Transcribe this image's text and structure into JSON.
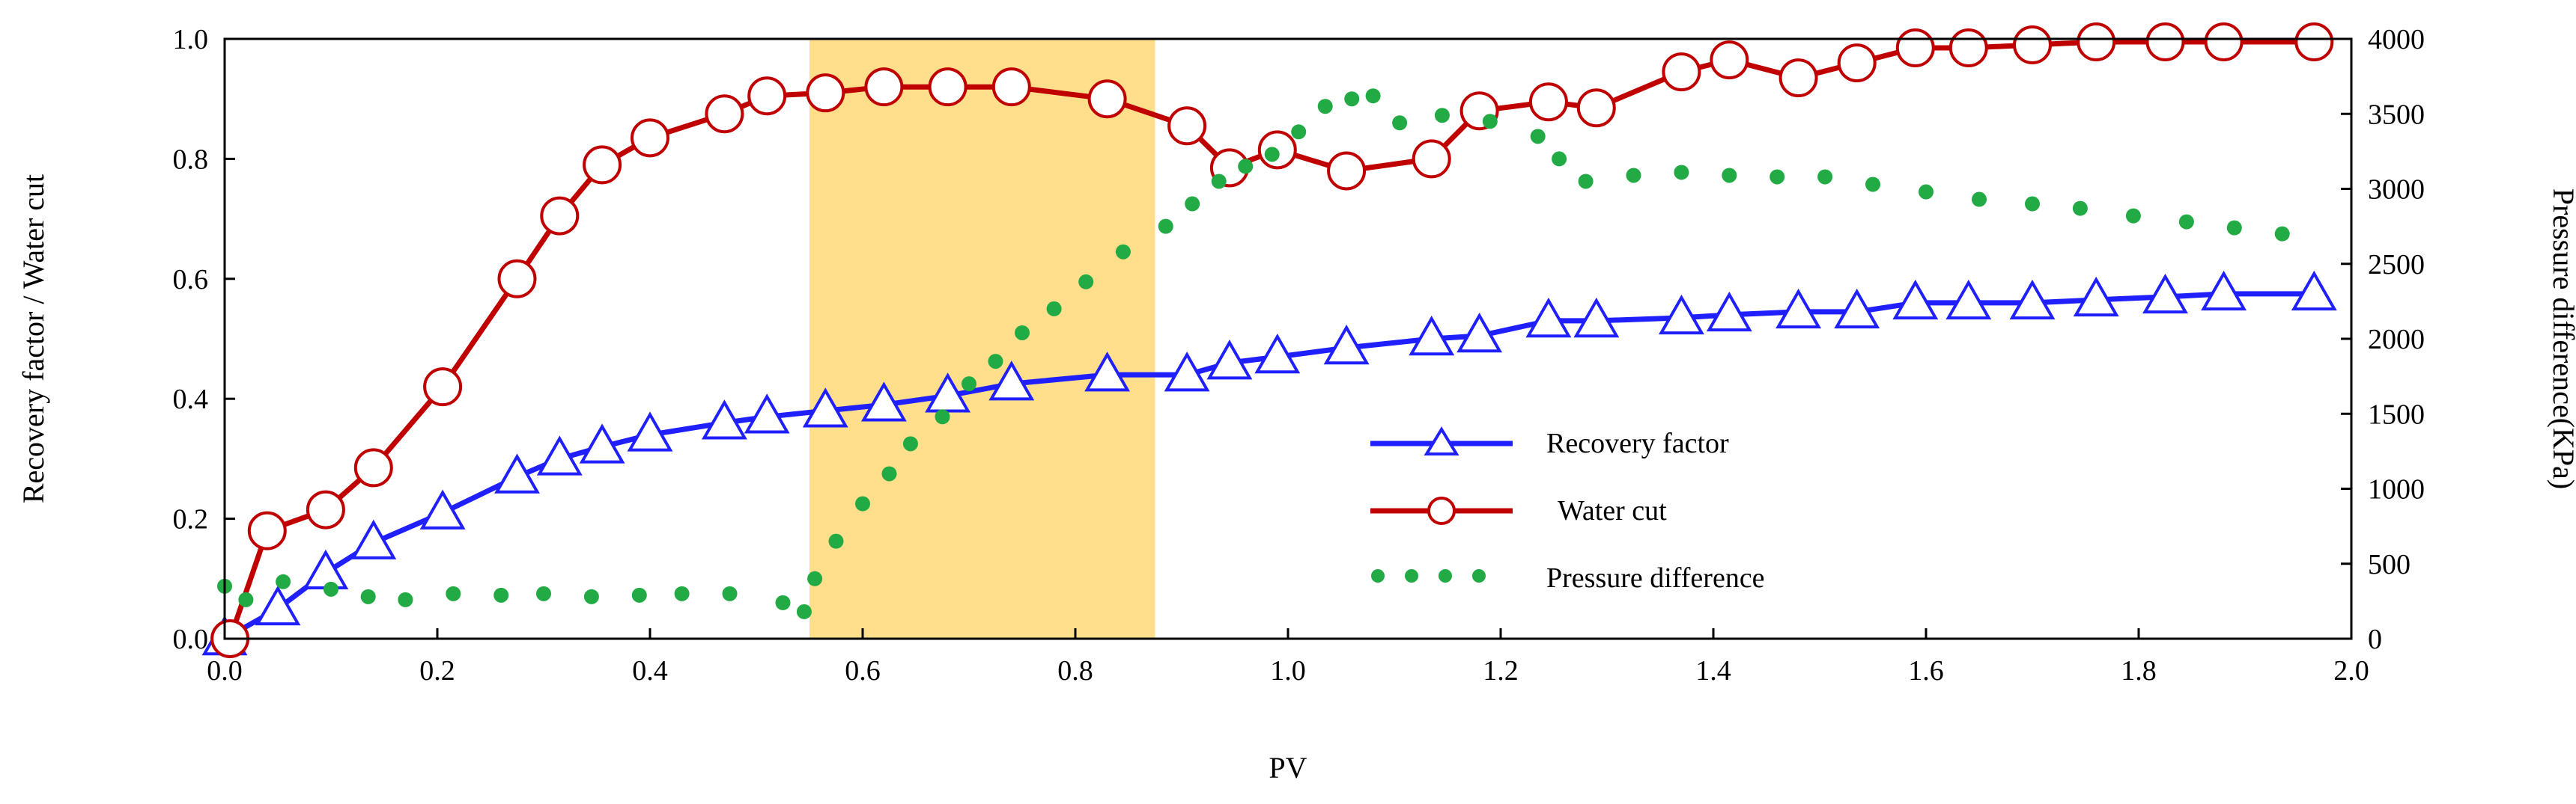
{
  "chart_data": {
    "type": "line",
    "title": "",
    "xlabel": "PV",
    "ylabel_left": "Recovery factor / Water cut",
    "ylabel_right": "Pressure difference(KPa)",
    "xlim": [
      0.0,
      2.0
    ],
    "ylim_left": [
      0.0,
      1.0
    ],
    "ylim_right": [
      0,
      4000
    ],
    "x_ticks": [
      "0.0",
      "0.2",
      "0.4",
      "0.6",
      "0.8",
      "1.0",
      "1.2",
      "1.4",
      "1.6",
      "1.8",
      "2.0"
    ],
    "y_left_ticks": [
      "0.0",
      "0.2",
      "0.4",
      "0.6",
      "0.8",
      "1.0"
    ],
    "y_right_ticks": [
      "0",
      "500",
      "1000",
      "1500",
      "2000",
      "2500",
      "3000",
      "3500",
      "4000"
    ],
    "grid": false,
    "highlight_region": {
      "x_range": [
        0.55,
        0.875
      ],
      "color": "#ffdf8c"
    },
    "legend_position": "center-right",
    "series": [
      {
        "name": "Recovery factor",
        "axis": "left",
        "color": "#1f1fff",
        "marker": "open-triangle",
        "line": "solid",
        "x": [
          0.0,
          0.05,
          0.095,
          0.14,
          0.205,
          0.275,
          0.315,
          0.355,
          0.4,
          0.47,
          0.51,
          0.565,
          0.62,
          0.68,
          0.74,
          0.83,
          0.905,
          0.945,
          0.99,
          1.055,
          1.135,
          1.18,
          1.245,
          1.29,
          1.37,
          1.415,
          1.48,
          1.535,
          1.59,
          1.64,
          1.7,
          1.76,
          1.825,
          1.88,
          1.965
        ],
        "y": [
          0.0,
          0.05,
          0.11,
          0.16,
          0.21,
          0.27,
          0.3,
          0.32,
          0.34,
          0.36,
          0.37,
          0.38,
          0.39,
          0.405,
          0.425,
          0.44,
          0.44,
          0.46,
          0.47,
          0.485,
          0.5,
          0.505,
          0.53,
          0.53,
          0.535,
          0.54,
          0.545,
          0.545,
          0.56,
          0.56,
          0.56,
          0.565,
          0.57,
          0.575,
          0.575
        ]
      },
      {
        "name": "Water cut",
        "axis": "left",
        "color": "#c00000",
        "marker": "open-circle",
        "line": "solid",
        "x": [
          0.005,
          0.04,
          0.095,
          0.14,
          0.205,
          0.275,
          0.315,
          0.355,
          0.4,
          0.47,
          0.51,
          0.565,
          0.62,
          0.68,
          0.74,
          0.83,
          0.905,
          0.945,
          0.99,
          1.055,
          1.135,
          1.18,
          1.245,
          1.29,
          1.37,
          1.415,
          1.48,
          1.535,
          1.59,
          1.64,
          1.7,
          1.76,
          1.825,
          1.88,
          1.965
        ],
        "y": [
          0.0,
          0.18,
          0.215,
          0.285,
          0.42,
          0.6,
          0.705,
          0.79,
          0.835,
          0.875,
          0.905,
          0.91,
          0.92,
          0.92,
          0.92,
          0.9,
          0.855,
          0.785,
          0.815,
          0.78,
          0.8,
          0.88,
          0.895,
          0.885,
          0.945,
          0.965,
          0.935,
          0.96,
          0.985,
          0.985,
          0.99,
          0.995,
          0.995,
          0.995,
          0.995
        ]
      },
      {
        "name": "Pressure difference",
        "axis": "right",
        "color": "#22aa44",
        "marker": "dot",
        "line": "dotted",
        "x": [
          0.0,
          0.02,
          0.055,
          0.1,
          0.135,
          0.17,
          0.215,
          0.26,
          0.3,
          0.345,
          0.39,
          0.43,
          0.475,
          0.525,
          0.545,
          0.555,
          0.575,
          0.6,
          0.625,
          0.645,
          0.675,
          0.7,
          0.725,
          0.75,
          0.78,
          0.81,
          0.845,
          0.885,
          0.91,
          0.935,
          0.96,
          0.985,
          1.01,
          1.035,
          1.06,
          1.08,
          1.105,
          1.145,
          1.19,
          1.235,
          1.255,
          1.28,
          1.325,
          1.37,
          1.415,
          1.46,
          1.505,
          1.55,
          1.6,
          1.65,
          1.7,
          1.745,
          1.795,
          1.845,
          1.89,
          1.935
        ],
        "y": [
          350,
          260,
          380,
          330,
          280,
          260,
          300,
          290,
          300,
          280,
          290,
          300,
          300,
          240,
          180,
          400,
          650,
          900,
          1100,
          1300,
          1480,
          1700,
          1850,
          2040,
          2200,
          2380,
          2580,
          2750,
          2900,
          3050,
          3150,
          3230,
          3380,
          3550,
          3600,
          3620,
          3440,
          3490,
          3450,
          3350,
          3200,
          3050,
          3090,
          3110,
          3090,
          3080,
          3080,
          3030,
          2980,
          2930,
          2900,
          2870,
          2820,
          2780,
          2740,
          2700
        ]
      }
    ]
  }
}
